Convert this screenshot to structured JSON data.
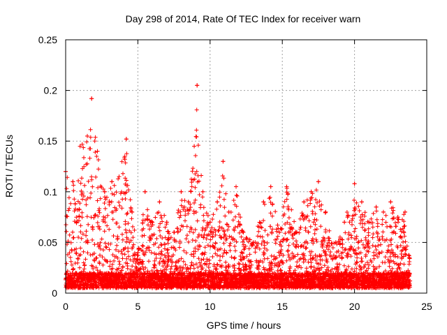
{
  "colors": {
    "series": "#ff0000",
    "grid": "#a0a0a0",
    "axes": "#000000",
    "background": "#ffffff"
  },
  "chart_data": {
    "type": "scatter",
    "title": "Day 298 of 2014, Rate Of TEC Index for receiver warn",
    "xlabel": "GPS time / hours",
    "ylabel": "ROTI / TECUs",
    "xlim": [
      0,
      25
    ],
    "ylim": [
      0,
      0.25
    ],
    "x_ticks": [
      0,
      5,
      10,
      15,
      20,
      25
    ],
    "x_tick_labels": [
      "0",
      "5",
      "10",
      "15",
      "20",
      "25"
    ],
    "y_ticks": [
      0,
      0.05,
      0.1,
      0.15,
      0.2,
      0.25
    ],
    "y_tick_labels": [
      "0",
      "0.05",
      "0.1",
      "0.15",
      "0.2",
      "0.25"
    ],
    "grid": true,
    "marker": "+",
    "series": [
      {
        "name": "ROTI",
        "baseline_range": [
          0.005,
          0.02
        ],
        "envelope": [
          {
            "x": 0.0,
            "y": 0.12
          },
          {
            "x": 0.5,
            "y": 0.11
          },
          {
            "x": 1.0,
            "y": 0.145
          },
          {
            "x": 1.5,
            "y": 0.155
          },
          {
            "x": 1.8,
            "y": 0.192
          },
          {
            "x": 2.2,
            "y": 0.14
          },
          {
            "x": 2.7,
            "y": 0.1
          },
          {
            "x": 3.2,
            "y": 0.11
          },
          {
            "x": 3.7,
            "y": 0.115
          },
          {
            "x": 4.2,
            "y": 0.152
          },
          {
            "x": 4.6,
            "y": 0.08
          },
          {
            "x": 5.0,
            "y": 0.04
          },
          {
            "x": 5.5,
            "y": 0.1
          },
          {
            "x": 6.0,
            "y": 0.07
          },
          {
            "x": 6.5,
            "y": 0.09
          },
          {
            "x": 7.0,
            "y": 0.07
          },
          {
            "x": 7.5,
            "y": 0.06
          },
          {
            "x": 8.0,
            "y": 0.1
          },
          {
            "x": 8.5,
            "y": 0.09
          },
          {
            "x": 8.9,
            "y": 0.145
          },
          {
            "x": 9.1,
            "y": 0.205
          },
          {
            "x": 9.5,
            "y": 0.1
          },
          {
            "x": 10.0,
            "y": 0.07
          },
          {
            "x": 10.5,
            "y": 0.09
          },
          {
            "x": 10.9,
            "y": 0.13
          },
          {
            "x": 11.3,
            "y": 0.08
          },
          {
            "x": 11.8,
            "y": 0.105
          },
          {
            "x": 12.3,
            "y": 0.06
          },
          {
            "x": 13.0,
            "y": 0.05
          },
          {
            "x": 13.7,
            "y": 0.09
          },
          {
            "x": 14.2,
            "y": 0.105
          },
          {
            "x": 14.8,
            "y": 0.06
          },
          {
            "x": 15.3,
            "y": 0.105
          },
          {
            "x": 16.0,
            "y": 0.06
          },
          {
            "x": 16.5,
            "y": 0.09
          },
          {
            "x": 17.0,
            "y": 0.1
          },
          {
            "x": 17.5,
            "y": 0.11
          },
          {
            "x": 18.0,
            "y": 0.08
          },
          {
            "x": 18.7,
            "y": 0.05
          },
          {
            "x": 19.3,
            "y": 0.07
          },
          {
            "x": 20.0,
            "y": 0.108
          },
          {
            "x": 20.5,
            "y": 0.09
          },
          {
            "x": 21.0,
            "y": 0.07
          },
          {
            "x": 21.5,
            "y": 0.085
          },
          {
            "x": 22.0,
            "y": 0.08
          },
          {
            "x": 22.5,
            "y": 0.09
          },
          {
            "x": 23.0,
            "y": 0.075
          },
          {
            "x": 23.5,
            "y": 0.08
          },
          {
            "x": 23.8,
            "y": 0.035
          }
        ],
        "x_extent": [
          0,
          23.85
        ]
      }
    ]
  }
}
